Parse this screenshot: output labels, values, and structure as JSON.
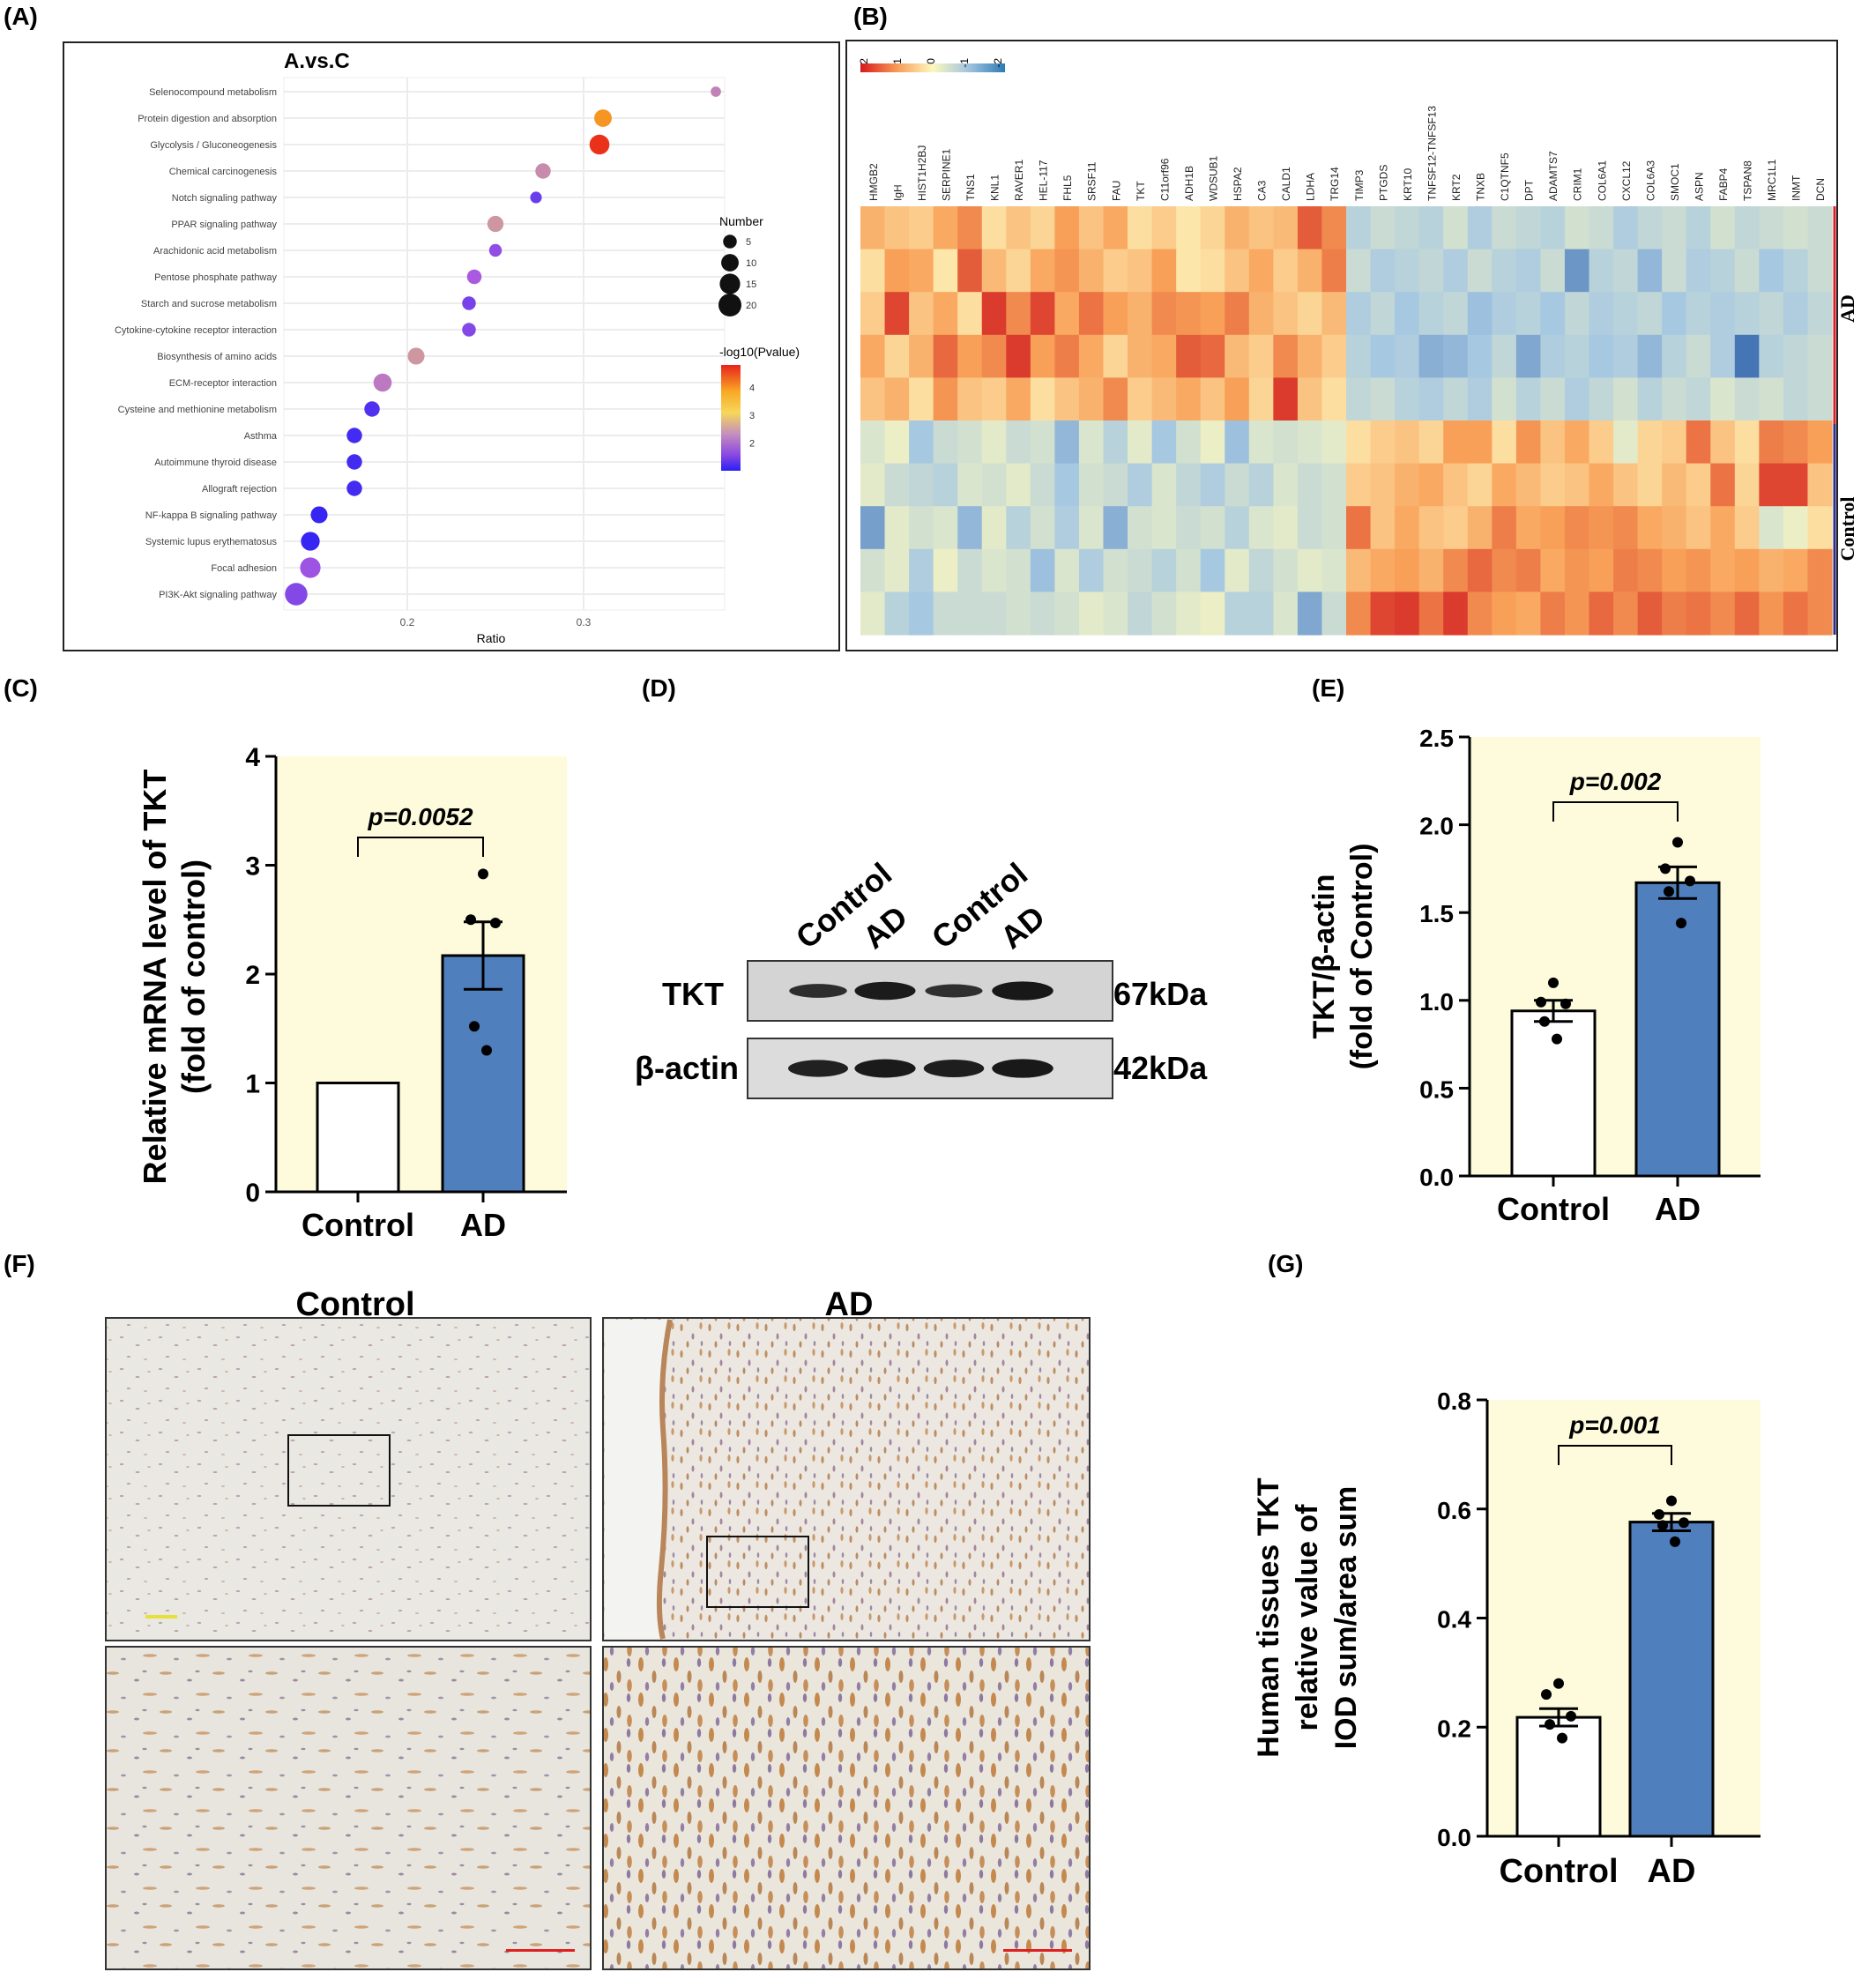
{
  "panel_labels": {
    "A": "(A)",
    "B": "(B)",
    "C": "(C)",
    "D": "(D)",
    "E": "(E)",
    "F": "(F)",
    "G": "(G)"
  },
  "colors": {
    "ad_bar": "#4f7fbd",
    "control_bar": "#ffffff",
    "plot_bg": "#fdfbdc",
    "hm_high": "#d7191c",
    "hm_mid": "#fdf8bf",
    "hm_low": "#2c7bb6"
  },
  "chart_data": [
    {
      "panel": "A",
      "type": "scatter",
      "title": "A.vs.C",
      "xlabel": "Ratio",
      "ylabel": "",
      "xlim": [
        0.13,
        0.38
      ],
      "xticks": [
        "0.2",
        "0.3"
      ],
      "grid": true,
      "categories": [
        "Selenocompound metabolism",
        "Protein digestion and absorption",
        "Glycolysis / Gluconeogenesis",
        "Chemical carcinogenesis",
        "Notch signaling pathway",
        "PPAR signaling pathway",
        "Arachidonic acid metabolism",
        "Pentose phosphate pathway",
        "Starch and sucrose metabolism",
        "Cytokine-cytokine receptor interaction",
        "Biosynthesis of amino acids",
        "ECM-receptor interaction",
        "Cysteine and methionine metabolism",
        "Asthma",
        "Autoimmune thyroid disease",
        "Allograft rejection",
        "NF-kappa B signaling pathway",
        "Systemic lupus erythematosus",
        "Focal adhesion",
        "PI3K-Akt signaling pathway"
      ],
      "ratio": [
        0.375,
        0.311,
        0.309,
        0.277,
        0.273,
        0.25,
        0.25,
        0.238,
        0.235,
        0.235,
        0.205,
        0.186,
        0.18,
        0.17,
        0.17,
        0.17,
        0.15,
        0.145,
        0.145,
        0.137
      ],
      "number": [
        2,
        10,
        14,
        7,
        3,
        8,
        4,
        6,
        5,
        5,
        9,
        11,
        7,
        7,
        7,
        7,
        9,
        12,
        15,
        19
      ],
      "neg_log10_pvalue": [
        2.4,
        4.0,
        4.7,
        2.5,
        1.5,
        2.6,
        1.8,
        2.0,
        1.6,
        1.7,
        2.6,
        2.3,
        1.3,
        1.2,
        1.2,
        1.2,
        1.1,
        1.1,
        1.9,
        1.7
      ],
      "size_legend": {
        "title": "Number",
        "labels": [
          "5",
          "10",
          "15",
          "20"
        ]
      },
      "color_legend": {
        "title": "-log10(Pvalue)",
        "labels": [
          "4",
          "3",
          "2"
        ],
        "range": [
          1,
          4.8
        ]
      }
    },
    {
      "panel": "B",
      "type": "heatmap",
      "genes": [
        "HMGB2",
        "IgH",
        "HIST1H2BJ",
        "SERPINE1",
        "TNS1",
        "KNL1",
        "RAVER1",
        "HEL-117",
        "FHL5",
        "SRSF11",
        "FAU",
        "TKT",
        "C11orf96",
        "ADH1B",
        "WDSUB1",
        "HSPA2",
        "CA3",
        "CALD1",
        "LDHA",
        "TRG14",
        "TIMP3",
        "PTGDS",
        "KRT10",
        "TNFSF12-TNFSF13",
        "KRT2",
        "TNXB",
        "C1QTNF5",
        "DPT",
        "ADAMTS7",
        "CRIM1",
        "COL6A1",
        "CXCL12",
        "COL6A3",
        "SMOC1",
        "ASPN",
        "FABP4",
        "TSPAN8",
        "MRC1L1",
        "INMT",
        "DCN"
      ],
      "group_labels": [
        "AD",
        "Control"
      ],
      "scale_labels": [
        "2",
        "1",
        "0",
        "-1",
        "-2"
      ],
      "values": [
        [
          0.8,
          0.6,
          0.5,
          0.9,
          1.2,
          0.3,
          0.6,
          0.4,
          1.0,
          0.6,
          0.9,
          0.3,
          0.5,
          0.2,
          0.4,
          0.8,
          0.6,
          0.7,
          1.6,
          1.2,
          -0.8,
          -0.6,
          -0.7,
          -0.8,
          -0.5,
          -0.9,
          -0.6,
          -0.7,
          -0.8,
          -0.5,
          -0.6,
          -0.9,
          -0.7,
          -0.6,
          -0.8,
          -0.5,
          -0.7,
          -0.6,
          -0.5,
          -0.6
        ],
        [
          0.3,
          1.0,
          0.9,
          0.2,
          1.6,
          0.7,
          0.4,
          0.9,
          1.1,
          0.8,
          0.5,
          0.6,
          1.0,
          0.2,
          0.3,
          0.6,
          0.9,
          0.5,
          0.8,
          1.3,
          -0.6,
          -0.9,
          -0.8,
          -0.7,
          -0.9,
          -0.6,
          -0.8,
          -0.9,
          -0.6,
          -1.6,
          -0.8,
          -0.7,
          -1.2,
          -0.6,
          -0.9,
          -0.8,
          -0.6,
          -1.0,
          -0.8,
          -0.6
        ],
        [
          0.5,
          1.8,
          0.6,
          0.9,
          0.3,
          1.9,
          1.2,
          1.8,
          0.9,
          1.4,
          1.0,
          0.8,
          1.2,
          1.1,
          1.0,
          1.3,
          0.8,
          0.6,
          0.4,
          0.7,
          -0.9,
          -0.7,
          -1.0,
          -0.8,
          -0.7,
          -1.1,
          -0.9,
          -0.8,
          -1.0,
          -0.7,
          -0.9,
          -0.8,
          -0.7,
          -1.0,
          -0.8,
          -0.9,
          -0.8,
          -0.7,
          -0.9,
          -0.7
        ],
        [
          0.9,
          0.4,
          0.8,
          1.5,
          1.0,
          1.2,
          1.9,
          1.0,
          1.3,
          0.9,
          0.4,
          0.8,
          0.9,
          1.6,
          1.5,
          0.7,
          0.5,
          1.2,
          0.8,
          0.5,
          -0.8,
          -1.0,
          -0.9,
          -1.3,
          -1.2,
          -1.0,
          -0.7,
          -1.4,
          -0.9,
          -0.8,
          -1.0,
          -0.9,
          -1.2,
          -0.8,
          -0.6,
          -0.9,
          -2.0,
          -0.8,
          -0.7,
          -0.6
        ],
        [
          0.6,
          0.8,
          0.3,
          1.1,
          0.6,
          0.5,
          0.9,
          0.3,
          0.6,
          0.8,
          1.2,
          0.5,
          0.7,
          0.9,
          0.6,
          1.0,
          0.4,
          1.9,
          0.6,
          0.3,
          -0.7,
          -0.6,
          -0.8,
          -0.9,
          -0.7,
          -0.9,
          -0.5,
          -0.8,
          -0.6,
          -0.9,
          -0.7,
          -0.5,
          -0.8,
          -0.6,
          -0.7,
          -0.4,
          -0.6,
          -0.5,
          -0.7,
          -0.6
        ],
        [
          -0.4,
          -0.2,
          -1.0,
          -0.6,
          -0.5,
          -0.3,
          -0.6,
          -0.5,
          -1.2,
          -0.4,
          -0.8,
          -0.3,
          -1.0,
          -0.5,
          -0.2,
          -1.1,
          -0.4,
          -0.5,
          -0.4,
          -0.3,
          0.3,
          0.5,
          0.6,
          0.4,
          1.0,
          1.0,
          0.3,
          1.1,
          0.6,
          0.9,
          0.5,
          -0.3,
          0.4,
          0.5,
          1.4,
          0.6,
          0.3,
          1.3,
          1.2,
          1.0
        ],
        [
          -0.3,
          -0.6,
          -0.7,
          -0.8,
          -0.4,
          -0.5,
          -0.3,
          -0.6,
          -1.0,
          -0.5,
          -0.6,
          -0.9,
          -0.4,
          -0.7,
          -0.9,
          -0.6,
          -0.8,
          -0.4,
          -0.6,
          -0.5,
          0.5,
          0.6,
          0.8,
          0.9,
          0.6,
          0.4,
          0.9,
          0.7,
          0.5,
          0.6,
          0.9,
          0.6,
          0.4,
          0.7,
          0.5,
          1.4,
          0.4,
          1.8,
          1.8,
          0.6
        ],
        [
          -1.5,
          -0.3,
          -0.5,
          -0.4,
          -1.2,
          -0.3,
          -0.8,
          -0.5,
          -0.9,
          -0.4,
          -1.3,
          -0.5,
          -0.4,
          -0.6,
          -0.5,
          -0.8,
          -0.4,
          -0.3,
          -0.6,
          -0.5,
          1.4,
          0.6,
          0.9,
          0.6,
          0.5,
          0.8,
          1.3,
          0.9,
          1.0,
          1.2,
          1.1,
          1.2,
          0.9,
          0.8,
          0.6,
          0.9,
          0.5,
          -0.4,
          -0.2,
          0.3
        ],
        [
          -0.5,
          -0.3,
          -0.9,
          -0.2,
          -0.6,
          -0.4,
          -0.5,
          -1.1,
          -0.4,
          -0.9,
          -0.5,
          -0.6,
          -0.8,
          -0.5,
          -1.0,
          -0.3,
          -0.7,
          -0.5,
          -0.3,
          -0.4,
          0.7,
          0.9,
          1.0,
          0.8,
          1.2,
          1.5,
          1.2,
          1.3,
          0.9,
          1.1,
          1.0,
          1.3,
          1.2,
          1.0,
          1.1,
          0.9,
          1.0,
          0.8,
          0.9,
          1.2
        ],
        [
          -0.3,
          -0.8,
          -1.0,
          -0.6,
          -0.6,
          -0.6,
          -0.5,
          -0.6,
          -0.5,
          -0.3,
          -0.4,
          -0.7,
          -0.5,
          -0.3,
          -0.2,
          -0.8,
          -0.8,
          -0.4,
          -1.4,
          -0.6,
          1.2,
          1.8,
          1.9,
          1.4,
          1.9,
          1.2,
          1.0,
          0.9,
          1.3,
          1.1,
          1.5,
          1.2,
          1.6,
          1.3,
          1.4,
          1.2,
          1.5,
          1.1,
          1.4,
          1.2
        ]
      ]
    },
    {
      "panel": "C",
      "type": "bar",
      "categories": [
        "Control",
        "AD"
      ],
      "values": [
        1.0,
        2.17
      ],
      "sem": [
        0,
        0.31
      ],
      "points": [
        [
          1.0
        ],
        [
          2.92,
          2.5,
          2.47,
          1.52,
          1.3
        ]
      ],
      "ylabel_line1": "Relative mRNA level of TKT",
      "ylabel_line2": "(fold of control)",
      "ylim": [
        0,
        4
      ],
      "yticks": [
        "0",
        "1",
        "2",
        "3",
        "4"
      ],
      "annotation": "p=0.0052"
    },
    {
      "panel": "D",
      "type": "table",
      "lane_labels": [
        "Control",
        "AD",
        "Control",
        "AD"
      ],
      "rows": [
        {
          "protein": "TKT",
          "size": "67kDa",
          "intensity": [
            0.55,
            0.9,
            0.5,
            0.95
          ]
        },
        {
          "protein": "β-actin",
          "size": "42kDa",
          "intensity": [
            0.8,
            0.92,
            0.85,
            0.95
          ]
        }
      ]
    },
    {
      "panel": "E",
      "type": "bar",
      "categories": [
        "Control",
        "AD"
      ],
      "values": [
        0.94,
        1.67
      ],
      "sem": [
        0.06,
        0.09
      ],
      "points": [
        [
          1.1,
          0.99,
          0.98,
          0.88,
          0.78
        ],
        [
          1.9,
          1.75,
          1.68,
          1.62,
          1.44
        ]
      ],
      "ylabel_line1": "TKT/β-actin",
      "ylabel_line2": "(fold of Control)",
      "ylim": [
        0,
        2.5
      ],
      "yticks": [
        "0.0",
        "0.5",
        "1.0",
        "1.5",
        "2.0",
        "2.5"
      ],
      "annotation": "p=0.002"
    },
    {
      "panel": "G",
      "type": "bar",
      "categories": [
        "Control",
        "AD"
      ],
      "values": [
        0.218,
        0.576
      ],
      "sem": [
        0.016,
        0.016
      ],
      "points": [
        [
          0.28,
          0.26,
          0.22,
          0.205,
          0.18
        ],
        [
          0.615,
          0.59,
          0.575,
          0.57,
          0.54
        ]
      ],
      "ylabel_line1": "Human tissues TKT",
      "ylabel_line2": "relative value of",
      "ylabel_line3": "IOD sum/area sum",
      "ylim": [
        0,
        0.8
      ],
      "yticks": [
        "0.0",
        "0.2",
        "0.4",
        "0.6",
        "0.8"
      ],
      "annotation": "p=0.001"
    }
  ],
  "panel_F": {
    "title_left": "Control",
    "title_right": "AD"
  }
}
